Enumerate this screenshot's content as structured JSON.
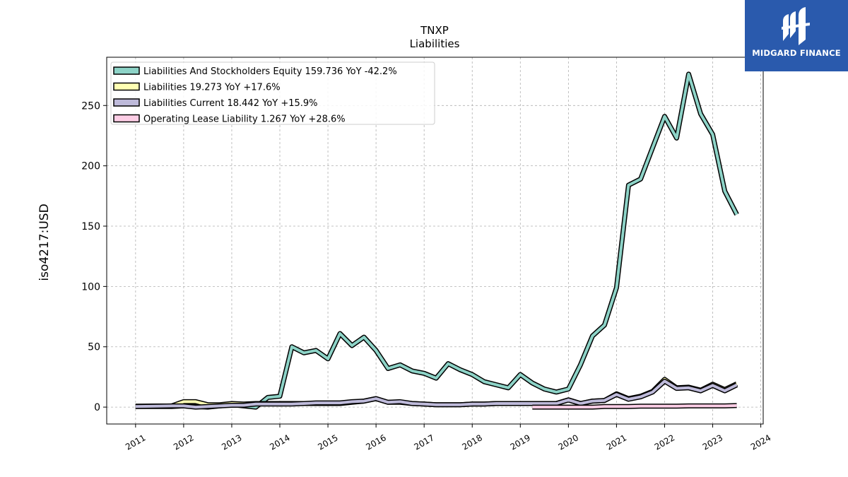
{
  "chart_data": {
    "type": "line",
    "title": "TNXP",
    "subtitle": "Liabilities",
    "ylabel": "iso4217:USD",
    "xlabel": "",
    "ylim": [
      -14,
      290
    ],
    "xlim": [
      2010.4,
      2024.05
    ],
    "yticks": [
      0,
      50,
      100,
      150,
      200,
      250
    ],
    "xticks": [
      2011,
      2012,
      2013,
      2014,
      2015,
      2016,
      2017,
      2018,
      2019,
      2020,
      2021,
      2022,
      2023,
      2024
    ],
    "grid": true,
    "legend_position": "top-left",
    "series": [
      {
        "name": "Liabilities And Stockholders Equity",
        "legend": "Liabilities And Stockholders Equity  159.736 YoY -42.2%",
        "color": "#8dd3c7",
        "points": [
          [
            2011.0,
            0.5
          ],
          [
            2011.75,
            0.5
          ],
          [
            2012.0,
            1.0
          ],
          [
            2012.25,
            0.5
          ],
          [
            2012.5,
            0.0
          ],
          [
            2012.75,
            1.0
          ],
          [
            2013.0,
            2.0
          ],
          [
            2013.25,
            1.0
          ],
          [
            2013.5,
            0.0
          ],
          [
            2013.75,
            8.0
          ],
          [
            2014.0,
            9.0
          ],
          [
            2014.25,
            50.0
          ],
          [
            2014.5,
            45.0
          ],
          [
            2014.75,
            47.0
          ],
          [
            2015.0,
            40.0
          ],
          [
            2015.25,
            61.0
          ],
          [
            2015.5,
            51.0
          ],
          [
            2015.75,
            58.0
          ],
          [
            2016.0,
            47.0
          ],
          [
            2016.25,
            32.0
          ],
          [
            2016.5,
            35.0
          ],
          [
            2016.75,
            30.0
          ],
          [
            2017.0,
            28.0
          ],
          [
            2017.25,
            24.0
          ],
          [
            2017.5,
            36.0
          ],
          [
            2017.75,
            31.0
          ],
          [
            2018.0,
            27.0
          ],
          [
            2018.25,
            21.0
          ],
          [
            2018.5,
            18.5
          ],
          [
            2018.75,
            16.0
          ],
          [
            2019.0,
            27.0
          ],
          [
            2019.25,
            20.0
          ],
          [
            2019.5,
            15.0
          ],
          [
            2019.75,
            12.5
          ],
          [
            2020.0,
            15.0
          ],
          [
            2020.25,
            35.0
          ],
          [
            2020.5,
            59.0
          ],
          [
            2020.75,
            68.0
          ],
          [
            2021.0,
            99.0
          ],
          [
            2021.25,
            184.0
          ],
          [
            2021.5,
            189.0
          ],
          [
            2021.75,
            215.0
          ],
          [
            2022.0,
            241.0
          ],
          [
            2022.25,
            223.0
          ],
          [
            2022.5,
            276.0
          ],
          [
            2022.75,
            243.0
          ],
          [
            2023.0,
            226.0
          ],
          [
            2023.25,
            179.0
          ],
          [
            2023.5,
            159.7
          ]
        ]
      },
      {
        "name": "Liabilities",
        "legend": "Liabilities  19.273 YoY +17.6%",
        "color": "#ffffb3",
        "points": [
          [
            2011.0,
            0.8
          ],
          [
            2011.75,
            1.0
          ],
          [
            2012.0,
            4.5
          ],
          [
            2012.25,
            4.5
          ],
          [
            2012.5,
            2.0
          ],
          [
            2012.75,
            2.0
          ],
          [
            2013.0,
            3.0
          ],
          [
            2013.25,
            2.5
          ],
          [
            2013.5,
            3.0
          ],
          [
            2013.75,
            3.0
          ],
          [
            2014.0,
            3.0
          ],
          [
            2014.25,
            3.0
          ],
          [
            2014.5,
            3.0
          ],
          [
            2014.75,
            3.0
          ],
          [
            2015.0,
            3.0
          ],
          [
            2015.25,
            3.0
          ],
          [
            2015.5,
            4.0
          ],
          [
            2015.75,
            5.0
          ],
          [
            2016.0,
            7.0
          ],
          [
            2016.25,
            4.0
          ],
          [
            2016.5,
            4.0
          ],
          [
            2016.75,
            3.0
          ],
          [
            2017.0,
            2.5
          ],
          [
            2017.25,
            2.0
          ],
          [
            2017.5,
            2.0
          ],
          [
            2017.75,
            2.0
          ],
          [
            2018.0,
            2.5
          ],
          [
            2018.25,
            2.5
          ],
          [
            2018.5,
            3.0
          ],
          [
            2018.75,
            3.0
          ],
          [
            2019.0,
            3.0
          ],
          [
            2019.25,
            3.0
          ],
          [
            2019.5,
            3.0
          ],
          [
            2019.75,
            3.0
          ],
          [
            2020.0,
            6.0
          ],
          [
            2020.25,
            3.0
          ],
          [
            2020.5,
            5.0
          ],
          [
            2020.75,
            5.5
          ],
          [
            2021.0,
            11.0
          ],
          [
            2021.25,
            7.0
          ],
          [
            2021.5,
            9.0
          ],
          [
            2021.75,
            13.0
          ],
          [
            2022.0,
            23.0
          ],
          [
            2022.25,
            16.0
          ],
          [
            2022.5,
            16.5
          ],
          [
            2022.75,
            14.0
          ],
          [
            2023.0,
            19.0
          ],
          [
            2023.25,
            14.5
          ],
          [
            2023.5,
            19.3
          ]
        ]
      },
      {
        "name": "Liabilities Current",
        "legend": "Liabilities Current  18.442 YoY +15.9%",
        "color": "#bebada",
        "points": [
          [
            2011.0,
            0.5
          ],
          [
            2011.75,
            1.0
          ],
          [
            2012.0,
            1.0
          ],
          [
            2012.25,
            0.0
          ],
          [
            2012.5,
            0.5
          ],
          [
            2012.75,
            1.0
          ],
          [
            2013.0,
            1.5
          ],
          [
            2013.25,
            1.5
          ],
          [
            2013.5,
            2.5
          ],
          [
            2013.75,
            2.5
          ],
          [
            2014.0,
            2.5
          ],
          [
            2014.25,
            2.5
          ],
          [
            2014.5,
            3.0
          ],
          [
            2014.75,
            3.5
          ],
          [
            2015.0,
            3.5
          ],
          [
            2015.25,
            3.5
          ],
          [
            2015.5,
            4.5
          ],
          [
            2015.75,
            5.0
          ],
          [
            2016.0,
            7.0
          ],
          [
            2016.25,
            4.0
          ],
          [
            2016.5,
            4.5
          ],
          [
            2016.75,
            3.0
          ],
          [
            2017.0,
            2.5
          ],
          [
            2017.25,
            2.0
          ],
          [
            2017.5,
            2.0
          ],
          [
            2017.75,
            2.0
          ],
          [
            2018.0,
            2.5
          ],
          [
            2018.25,
            2.5
          ],
          [
            2018.5,
            3.0
          ],
          [
            2018.75,
            3.0
          ],
          [
            2019.0,
            3.0
          ],
          [
            2019.25,
            3.0
          ],
          [
            2019.5,
            3.0
          ],
          [
            2019.75,
            3.0
          ],
          [
            2020.0,
            6.0
          ],
          [
            2020.25,
            3.0
          ],
          [
            2020.5,
            5.0
          ],
          [
            2020.75,
            5.5
          ],
          [
            2021.0,
            10.5
          ],
          [
            2021.25,
            6.5
          ],
          [
            2021.5,
            8.5
          ],
          [
            2021.75,
            12.5
          ],
          [
            2022.0,
            21.5
          ],
          [
            2022.25,
            15.5
          ],
          [
            2022.5,
            16.0
          ],
          [
            2022.75,
            13.5
          ],
          [
            2023.0,
            18.0
          ],
          [
            2023.25,
            13.5
          ],
          [
            2023.5,
            18.4
          ]
        ]
      },
      {
        "name": "Operating Lease Liability",
        "legend": "Operating Lease Liability  1.267 YoY +28.6%",
        "color": "#fccde5",
        "points": [
          [
            2019.25,
            0.0
          ],
          [
            2019.5,
            0.0
          ],
          [
            2019.75,
            0.0
          ],
          [
            2020.0,
            0.0
          ],
          [
            2020.25,
            0.0
          ],
          [
            2020.5,
            0.0
          ],
          [
            2020.75,
            0.5
          ],
          [
            2021.0,
            0.5
          ],
          [
            2021.25,
            0.5
          ],
          [
            2021.5,
            0.8
          ],
          [
            2021.75,
            0.8
          ],
          [
            2022.0,
            0.8
          ],
          [
            2022.25,
            0.8
          ],
          [
            2022.5,
            1.0
          ],
          [
            2022.75,
            1.0
          ],
          [
            2023.0,
            1.0
          ],
          [
            2023.25,
            1.0
          ],
          [
            2023.5,
            1.3
          ]
        ]
      }
    ]
  },
  "branding": {
    "name": "MIDGARD FINANCE",
    "color": "#2a5aad"
  }
}
